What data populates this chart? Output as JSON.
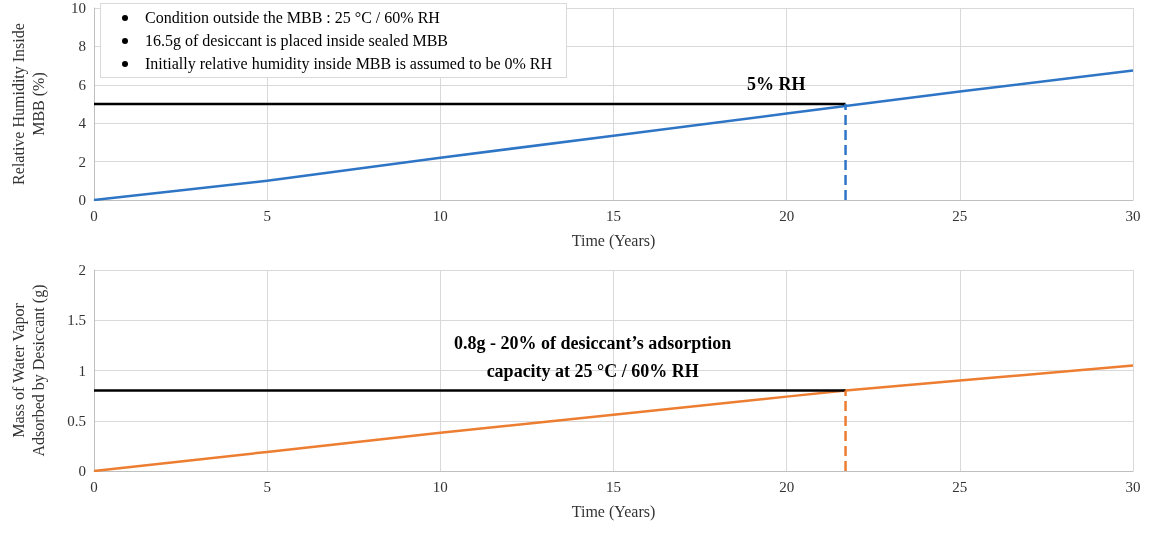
{
  "chart_data": [
    {
      "type": "line",
      "xlabel": "Time (Years)",
      "ylabel": "Relative Humidity Inside\nMBB (%)",
      "xlim": [
        0,
        30
      ],
      "xticks": [
        0,
        5,
        10,
        15,
        20,
        25,
        30
      ],
      "ylim": [
        0,
        10
      ],
      "yticks": [
        0,
        2,
        4,
        6,
        8,
        10
      ],
      "grid": true,
      "marker": "none",
      "line_style": "solid",
      "annotations": [
        "Condition outside the MBB : 25 °C / 60% RH",
        "16.5g of desiccant is placed inside sealed MBB",
        "Initially relative humidity inside MBB is assumed to be 0% RH",
        {
          "text": "5% RH",
          "x": 21.7,
          "y": 5
        }
      ],
      "series": [
        {
          "color": "#2e75c6",
          "x": [
            0,
            5,
            10,
            15,
            20,
            21.7,
            25,
            30
          ],
          "values": [
            0,
            1.0,
            2.2,
            3.35,
            4.5,
            4.9,
            5.65,
            6.75
          ]
        },
        {
          "color": "#000000",
          "x": [
            0,
            21.7
          ],
          "values": [
            5,
            5
          ]
        },
        {
          "color": "#2e75c6",
          "x": [
            21.7,
            21.7
          ],
          "values": [
            0,
            5
          ],
          "line_style": "dashed"
        }
      ]
    },
    {
      "type": "line",
      "xlabel": "Time (Years)",
      "ylabel": "Mass of Water Vapor\nAdsorbed by Desiccant (g)",
      "xlim": [
        0,
        30
      ],
      "xticks": [
        0,
        5,
        10,
        15,
        20,
        25,
        30
      ],
      "ylim": [
        0,
        2
      ],
      "yticks": [
        0,
        0.5,
        1,
        1.5,
        2
      ],
      "grid": true,
      "marker": "none",
      "line_style": "solid",
      "annotations": [
        {
          "text": "0.8g - 20% of desiccant’s adsorption\ncapacity at 25 °C / 60% RH",
          "x": 14.4,
          "y": 0.8
        }
      ],
      "series": [
        {
          "color": "#ed7d31",
          "x": [
            0,
            5,
            10,
            15,
            20,
            21.7,
            25,
            30
          ],
          "values": [
            0,
            0.19,
            0.38,
            0.56,
            0.74,
            0.8,
            0.9,
            1.05
          ]
        },
        {
          "color": "#000000",
          "x": [
            0,
            21.7
          ],
          "values": [
            0.8,
            0.8
          ]
        },
        {
          "color": "#ed7d31",
          "x": [
            21.7,
            21.7
          ],
          "values": [
            0,
            0.8
          ],
          "line_style": "dashed"
        }
      ]
    }
  ]
}
